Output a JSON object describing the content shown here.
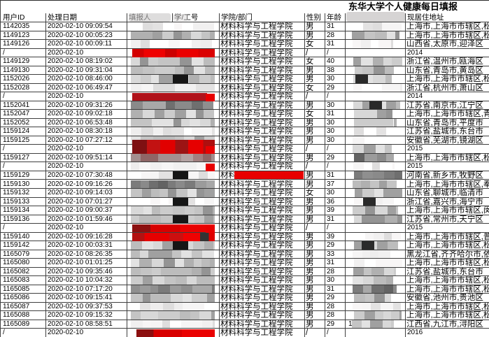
{
  "title": "东华大学个人健康每日填报",
  "columns": [
    {
      "label": "用户ID",
      "redacted": false
    },
    {
      "label": "处理日期",
      "redacted": false
    },
    {
      "label": "填报人",
      "redacted": true
    },
    {
      "label": "学/工号",
      "redacted": true
    },
    {
      "label": "学院/部门",
      "redacted": false
    },
    {
      "label": "性别",
      "redacted": false
    },
    {
      "label": "年龄",
      "redacted": false
    },
    {
      "label": "",
      "redacted": true
    },
    {
      "label": "现居住地址",
      "redacted": false
    }
  ],
  "colors": {
    "redaction_red": "#e60000",
    "redaction_dark_red": "#8c1010",
    "redaction_crimson": "#b0121a",
    "grid_line": "#3f3f3f"
  },
  "rows": [
    {
      "user_id": "1142035",
      "date": "2020-02-10 09:09:54",
      "dept": "材料科学与工程学院",
      "gender": "男",
      "age": "31",
      "address": "上海市,上海市市辖区,松江",
      "mid": "mosaic-light",
      "phone": "mosaic-light"
    },
    {
      "user_id": "1149123",
      "date": "2020-02-10 00:05:23",
      "dept": "材料科学与工程学院",
      "gender": "男",
      "age": "28",
      "address": "上海市,上海市市辖区,松江",
      "mid": "mosaic-med",
      "phone": "mosaic-med"
    },
    {
      "user_id": "1149126",
      "date": "2020-02-10 00:09:11",
      "dept": "材料科学与工程学院",
      "gender": "女",
      "age": "31",
      "address": "山西省,太原市,迎泽区",
      "mid": "mosaic-light",
      "phone": "mosaic-light"
    },
    {
      "user_id": "/",
      "date": "2020-02-10",
      "dept": "材料科学与工程学院",
      "gender": "/",
      "age": "/",
      "address": "2014",
      "mid": "redbar-bright",
      "phone": "none"
    },
    {
      "user_id": "1149129",
      "date": "2020-02-10 08:19:02",
      "dept": "材料科学与工程学院",
      "gender": "女",
      "age": "40",
      "address": "浙江省,温州市,瓯海区",
      "mid": "mosaic-med",
      "phone": "mosaic-med"
    },
    {
      "user_id": "1149130",
      "date": "2020-02-10 09:31:04",
      "dept": "材料科学与工程学院",
      "gender": "男",
      "age": "38",
      "address": "山东省,青岛市,黄岛区",
      "mid": "mosaic-med",
      "phone": "mosaic-med"
    },
    {
      "user_id": "1152026",
      "date": "2020-02-10 08:46:00",
      "dept": "材料科学与工程学院",
      "gender": "男",
      "age": "30",
      "address": "上海市,上海市市辖区,松江",
      "mid": "mosaic-med",
      "midBlack": true,
      "phone": "mosaic-med",
      "phoneDark": true
    },
    {
      "user_id": "1152028",
      "date": "2020-02-10 06:49:47",
      "dept": "材料科学与工程学院",
      "gender": "女",
      "age": "29",
      "address": "浙江省,杭州市,萧山区",
      "mid": "mosaic-light",
      "phone": "mosaic-light"
    },
    {
      "user_id": "/",
      "date": "2020-02-10",
      "dept": "材料科学与工程学院",
      "gender": "/",
      "age": "/",
      "address": "2014",
      "mid": "redbar-crimson",
      "midSquare": true,
      "phone": "none"
    },
    {
      "user_id": "1152041",
      "date": "2020-02-10 09:31:26",
      "dept": "材料科学与工程学院",
      "gender": "男",
      "age": "30",
      "address": "江苏省,南京市,江宁区",
      "mid": "mosaic-dark",
      "phone": "mosaic-med",
      "phoneDark": true
    },
    {
      "user_id": "1152047",
      "date": "2020-02-10 09:02:18",
      "dept": "材料科学与工程学院",
      "gender": "女",
      "age": "31",
      "address": "上海市,上海市市辖区,青浦",
      "mid": "mosaic-med",
      "phone": "mosaic-med"
    },
    {
      "user_id": "1152052",
      "date": "2020-02-10 06:53:48",
      "dept": "材料科学与工程学院",
      "gender": "男",
      "age": "30",
      "address": "山东省,青岛市,平度市",
      "mid": "mosaic-med",
      "phone": "mosaic-med"
    },
    {
      "user_id": "1159124",
      "date": "2020-02-10 08:30:18",
      "dept": "材料科学与工程学院",
      "gender": "男",
      "age": "30",
      "address": "江苏省,盐城市,东台市",
      "mid": "mosaic-light",
      "phone": "mosaic-light"
    },
    {
      "user_id": "1159125",
      "date": "2020-02-10 07:27:12",
      "dept": "材料科学与工程学院",
      "gender": "男",
      "age": "30",
      "address": "安徽省,芜湖市,镜湖区",
      "mid": "mosaic-med",
      "phone": "mosaic-light"
    },
    {
      "user_id": "/",
      "date": "2020-02-10",
      "dept": "材料科学与工程学院",
      "gender": "/",
      "age": "/",
      "address": "2015",
      "mid": "redbar-mix",
      "midSquare": true,
      "midTall": true,
      "phone": "mosaic-med"
    },
    {
      "user_id": "1159127",
      "date": "2020-02-10 09:51:14",
      "dept": "材料科学与工程学院",
      "gender": "男",
      "age": "29",
      "address": "上海市,上海市市辖区,松江",
      "mid": "mosaic-mutedred",
      "phone": "mosaic-dark"
    },
    {
      "user_id": "/",
      "date": "2020-02-10",
      "dept": "材料科学与工程学院",
      "gender": "/",
      "age": "/",
      "address": "2015",
      "mid": "mosaic-light",
      "midSquare": true,
      "phone": "mosaic-light"
    },
    {
      "user_id": "1159129",
      "date": "2020-02-10 07:30:48",
      "dept": "材料科学与工程学院",
      "gender": "男",
      "age": "31",
      "address": "河南省,新乡市,牧野区",
      "mid": "mosaic-light",
      "midBlack": true,
      "deptRed": true,
      "phone": "mosaic-dark"
    },
    {
      "user_id": "1159130",
      "date": "2020-02-10 09:16:26",
      "dept": "材料科学与工程学院",
      "gender": "男",
      "age": "37",
      "address": "上海市,上海市市辖区,奉贤",
      "mid": "mosaic-dark",
      "phone": "mosaic-med"
    },
    {
      "user_id": "1159132",
      "date": "2020-02-10 09:14:03",
      "dept": "材料科学与工程学院",
      "gender": "女",
      "age": "30",
      "address": "山东省,聊城市,临清市",
      "mid": "mosaic-med",
      "phone": "mosaic-med"
    },
    {
      "user_id": "1159133",
      "date": "2020-02-10 07:01:27",
      "dept": "材料科学与工程学院",
      "gender": "男",
      "age": "36",
      "address": "浙江省,嘉兴市,海宁市",
      "mid": "mosaic-light",
      "midBlack": true,
      "phone": "mosaic-light",
      "phoneDark": true
    },
    {
      "user_id": "1159134",
      "date": "2020-02-10 09:00:37",
      "dept": "材料科学与工程学院",
      "gender": "男",
      "age": "39",
      "address": "上海市,上海市市辖区,闵行",
      "mid": "mosaic-med",
      "phone": "mosaic-med"
    },
    {
      "user_id": "1159136",
      "date": "2020-02-10 01:59:46",
      "dept": "材料科学与工程学院",
      "gender": "男",
      "age": "31",
      "address": "江苏省,常州市,天宁区",
      "mid": "mosaic-med",
      "midBlack": true,
      "phone": "mosaic-med"
    },
    {
      "user_id": "/",
      "date": "2020-02-10",
      "dept": "材料科学与工程学院",
      "gender": "/",
      "age": "/",
      "address": "2015",
      "mid": "redbar-mixdark",
      "midSquare": true,
      "phone": "none"
    },
    {
      "user_id": "1159140",
      "date": "2020-02-10 09:16:28",
      "dept": "材料科学与工程学院",
      "gender": "男",
      "age": "39",
      "address": "上海市,上海市市辖区,普陀",
      "mid": "redbar-redmosaic",
      "phone": "mosaic-light"
    },
    {
      "user_id": "1159142",
      "date": "2020-02-10 00:03:31",
      "dept": "材料科学与工程学院",
      "gender": "男",
      "age": "29",
      "address": "上海市,上海市市辖区,松江",
      "mid": "mosaic-med",
      "midBlack": true,
      "phone": "mosaic-med",
      "phoneDark": true
    },
    {
      "user_id": "1165079",
      "date": "2020-02-10 08:26:35",
      "dept": "材料科学与工程学院",
      "gender": "男",
      "age": "33",
      "address": "黑龙江省,齐齐哈尔市,依安",
      "mid": "mosaic-med",
      "phone": "mosaic-light"
    },
    {
      "user_id": "1165080",
      "date": "2020-02-10 01:01:25",
      "dept": "材料科学与工程学院",
      "gender": "男",
      "age": "31",
      "address": "上海市,上海市市辖区,松江",
      "mid": "mosaic-med",
      "phone": "mosaic-light"
    },
    {
      "user_id": "1165082",
      "date": "2020-02-10 09:35:46",
      "dept": "材料科学与工程学院",
      "gender": "男",
      "age": "28",
      "address": "江苏省,盐城市,东台市",
      "mid": "mosaic-med",
      "phone": "mosaic-med"
    },
    {
      "user_id": "1165083",
      "date": "2020-02-10 10:04:32",
      "dept": "材料科学与工程学院",
      "gender": "男",
      "age": "30",
      "address": "上海市,上海市市辖区,松江",
      "mid": "mosaic-med",
      "phone": "mosaic-med"
    },
    {
      "user_id": "1165085",
      "date": "2020-02-10 07:17:20",
      "dept": "材料科学与工程学院",
      "gender": "男",
      "age": "31",
      "address": "上海市,上海市市辖区,松江",
      "mid": "mosaic-dark",
      "phone": "mosaic-dark"
    },
    {
      "user_id": "1165086",
      "date": "2020-02-10 09:15:41",
      "dept": "材料科学与工程学院",
      "gender": "男",
      "age": "29",
      "address": "安徽省,池州市,贵池区",
      "mid": "mosaic-med",
      "phone": "mosaic-med"
    },
    {
      "user_id": "1165087",
      "date": "2020-02-10 09:37:53",
      "dept": "材料科学与工程学院",
      "gender": "男",
      "age": "28",
      "address": "上海市,上海市市辖区,松江",
      "mid": "mosaic-light",
      "phone": "mosaic-light"
    },
    {
      "user_id": "1165088",
      "date": "2020-02-10 09:15:32",
      "dept": "材料科学与工程学院",
      "gender": "男",
      "age": "28",
      "address": "上海市,上海市市辖区,松江",
      "mid": "mosaic-med",
      "phone": "mosaic-med"
    },
    {
      "user_id": "1165089",
      "date": "2020-02-10 08:58:51",
      "dept": "材料科学与工程学院",
      "gender": "男",
      "age": "29",
      "address": "江西省,九江市,浔阳区",
      "mid": "mosaic-light",
      "phone": "mosaic-med",
      "phonePrefix": "1"
    },
    {
      "user_id": "/",
      "date": "2020-02-10",
      "dept": "材料科学与工程学院",
      "gender": "/",
      "age": "/",
      "address": "2016",
      "mid": "redbar-mixdark",
      "midShort": true,
      "phone": "none"
    }
  ]
}
